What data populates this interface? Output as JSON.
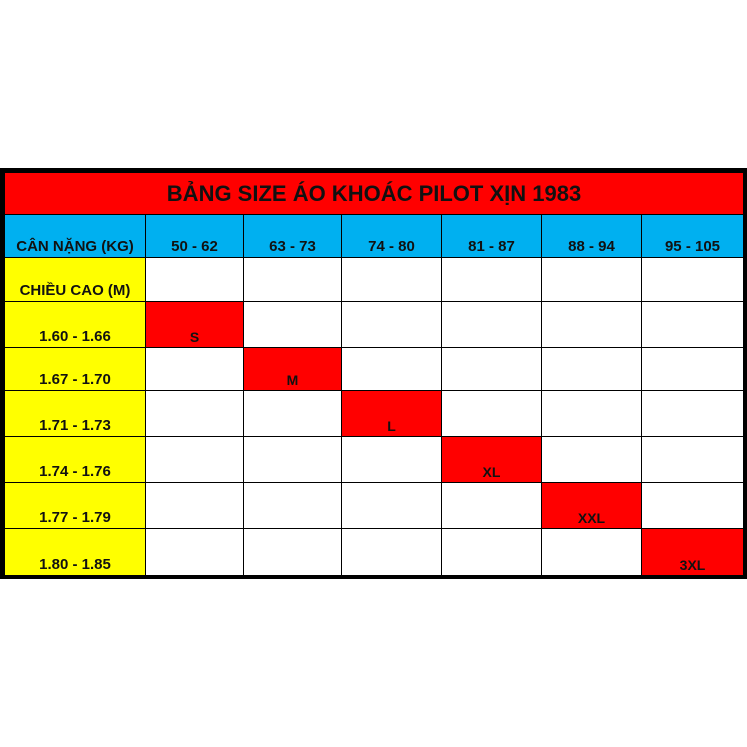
{
  "title": "BẢNG SIZE ÁO KHOÁC PILOT XỊN 1983",
  "weight_header": "CÂN NẶNG (KG)",
  "height_header": "CHIỀU CAO (M)",
  "weight_ranges": [
    "50 - 62",
    "63 - 73",
    "74 - 80",
    "81 - 87",
    "88 - 94",
    "95 - 105"
  ],
  "rows": [
    {
      "height": "1.60 - 1.66",
      "size": "S",
      "column": 0
    },
    {
      "height": "1.67 - 1.70",
      "size": "M",
      "column": 1
    },
    {
      "height": "1.71 - 1.73",
      "size": "L",
      "column": 2
    },
    {
      "height": "1.74 - 1.76",
      "size": "XL",
      "column": 3
    },
    {
      "height": "1.77 - 1.79",
      "size": "XXL",
      "column": 4
    },
    {
      "height": "1.80 - 1.85",
      "size": "3XL",
      "column": 5
    }
  ],
  "colors": {
    "title_bg": "#ff0000",
    "header_bg": "#00b0f0",
    "label_bg": "#ffff00",
    "size_bg": "#ff0000"
  }
}
